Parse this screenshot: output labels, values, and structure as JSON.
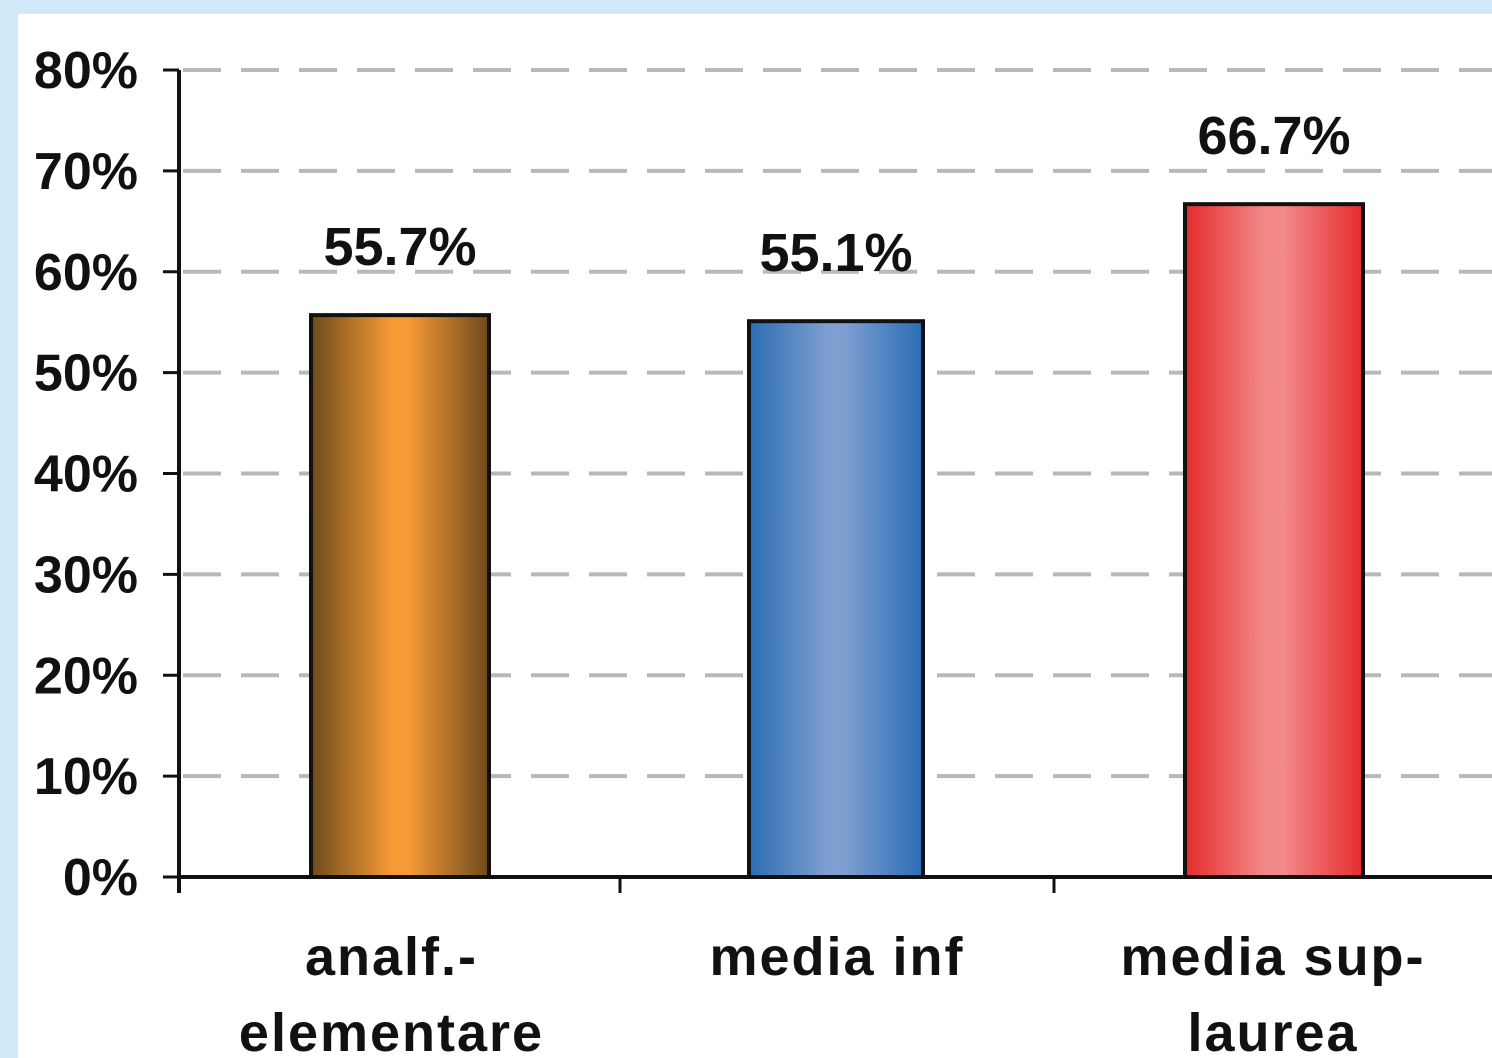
{
  "chart_data": {
    "type": "bar",
    "categories": [
      [
        "analf.-",
        "elementare"
      ],
      [
        "media inf"
      ],
      [
        "media sup-",
        "laurea"
      ]
    ],
    "values": [
      55.7,
      55.1,
      66.7
    ],
    "data_labels": [
      "55.7%",
      "55.1%",
      "66.7%"
    ],
    "ylim": [
      0,
      80
    ],
    "yticks": [
      0,
      10,
      20,
      30,
      40,
      50,
      60,
      70,
      80
    ],
    "ytick_labels": [
      "0%",
      "10%",
      "20%",
      "30%",
      "40%",
      "50%",
      "60%",
      "70%",
      "80%"
    ],
    "grid": true,
    "grid_style": "dashed",
    "title": "",
    "xlabel": "",
    "ylabel": "",
    "colors": {
      "bars": [
        {
          "edge": "#6e4a1c",
          "mid": "#f59a34"
        },
        {
          "edge": "#2a6db5",
          "mid": "#7f9fd0"
        },
        {
          "edge": "#e62b2b",
          "mid": "#f38a8a"
        }
      ],
      "grid": "#b8b8b8",
      "axis": "#111111",
      "background": "#cfe9f8"
    }
  }
}
